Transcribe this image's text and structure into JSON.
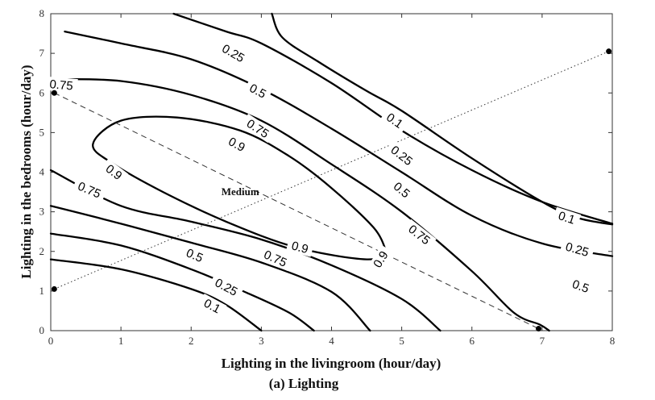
{
  "chart_data": {
    "type": "contour",
    "xlabel": "Lighting in the livingroom (hour/day)",
    "ylabel": "Lighting in the bedrooms (hour/day)",
    "caption": "(a) Lighting",
    "xlim": [
      0,
      8
    ],
    "ylim": [
      0,
      8
    ],
    "xticks": [
      "0",
      "1",
      "2",
      "3",
      "4",
      "5",
      "6",
      "7",
      "8"
    ],
    "yticks": [
      "0",
      "1",
      "2",
      "3",
      "4",
      "5",
      "6",
      "7",
      "8"
    ],
    "grid": false,
    "contours": [
      {
        "level": "0.1",
        "points": [
          [
            0,
            1.8
          ],
          [
            1.0,
            1.55
          ],
          [
            2.0,
            1.05
          ],
          [
            2.5,
            0.65
          ],
          [
            3.0,
            0
          ]
        ]
      },
      {
        "level": "0.25",
        "points": [
          [
            0,
            2.45
          ],
          [
            1.0,
            2.15
          ],
          [
            2.0,
            1.55
          ],
          [
            2.8,
            0.95
          ],
          [
            3.4,
            0.45
          ],
          [
            3.75,
            0
          ]
        ]
      },
      {
        "level": "0.5",
        "points": [
          [
            0,
            3.15
          ],
          [
            1.0,
            2.7
          ],
          [
            2.0,
            2.22
          ],
          [
            3.0,
            1.72
          ],
          [
            4.0,
            0.98
          ],
          [
            4.55,
            0
          ]
        ]
      },
      {
        "level": "0.75",
        "points": [
          [
            0,
            4.05
          ],
          [
            1.0,
            3.15
          ],
          [
            2.0,
            2.75
          ],
          [
            3.0,
            2.3
          ],
          [
            4.0,
            1.65
          ],
          [
            5.0,
            0.8
          ],
          [
            5.55,
            0
          ]
        ]
      },
      {
        "level": "0.9",
        "points": [
          [
            4.78,
            2.0
          ],
          [
            4.6,
            2.6
          ],
          [
            4.0,
            3.6
          ],
          [
            3.4,
            4.4
          ],
          [
            2.7,
            5.05
          ],
          [
            1.8,
            5.38
          ],
          [
            1.0,
            5.3
          ],
          [
            0.6,
            4.7
          ],
          [
            0.9,
            4.2
          ],
          [
            1.6,
            3.5
          ],
          [
            2.5,
            2.75
          ],
          [
            3.5,
            2.1
          ],
          [
            4.5,
            1.8
          ],
          [
            4.78,
            2.0
          ]
        ]
      },
      {
        "level": "0.75",
        "points": [
          [
            0.1,
            6.35
          ],
          [
            1.0,
            6.3
          ],
          [
            2.0,
            5.95
          ],
          [
            3.0,
            5.3
          ],
          [
            4.0,
            4.2
          ],
          [
            5.0,
            3.0
          ],
          [
            6.0,
            1.5
          ],
          [
            6.6,
            0.45
          ],
          [
            6.97,
            0.15
          ],
          [
            7.1,
            0
          ]
        ]
      },
      {
        "level": "0.5",
        "points": [
          [
            0.2,
            7.55
          ],
          [
            1.0,
            7.25
          ],
          [
            2.0,
            6.85
          ],
          [
            3.0,
            6.1
          ],
          [
            4.0,
            5.1
          ],
          [
            5.0,
            4.0
          ],
          [
            6.0,
            2.9
          ],
          [
            7.0,
            2.2
          ],
          [
            8.0,
            1.88
          ]
        ]
      },
      {
        "level": "0.25",
        "points": [
          [
            1.75,
            8.0
          ],
          [
            2.5,
            7.55
          ],
          [
            3.0,
            7.25
          ],
          [
            4.0,
            6.25
          ],
          [
            5.0,
            5.05
          ],
          [
            6.0,
            4.05
          ],
          [
            7.0,
            3.25
          ],
          [
            8.0,
            2.7
          ]
        ]
      },
      {
        "level": "0.1",
        "points": [
          [
            3.15,
            8.0
          ],
          [
            3.3,
            7.4
          ],
          [
            3.8,
            6.8
          ],
          [
            4.5,
            6.05
          ],
          [
            5.0,
            5.55
          ],
          [
            6.0,
            4.35
          ],
          [
            7.0,
            3.25
          ],
          [
            7.5,
            2.85
          ],
          [
            8.0,
            2.68
          ]
        ]
      }
    ],
    "contour_labels": [
      {
        "text": "0.1",
        "x": 7.35,
        "y": 2.85,
        "angle": 18
      },
      {
        "text": "0.25",
        "x": 7.5,
        "y": 2.05,
        "angle": 16
      },
      {
        "text": "0.5",
        "x": 7.55,
        "y": 1.12,
        "angle": 20
      },
      {
        "text": "0.75",
        "x": 5.25,
        "y": 2.42,
        "angle": 38
      },
      {
        "text": "0.9",
        "x": 4.7,
        "y": 1.8,
        "angle": -58
      },
      {
        "text": "0.9",
        "x": 3.55,
        "y": 2.1,
        "angle": 15
      },
      {
        "text": "0.75",
        "x": 3.2,
        "y": 1.82,
        "angle": 24
      },
      {
        "text": "0.5",
        "x": 2.05,
        "y": 1.9,
        "angle": 23
      },
      {
        "text": "0.25",
        "x": 2.5,
        "y": 1.1,
        "angle": 28
      },
      {
        "text": "0.1",
        "x": 2.3,
        "y": 0.62,
        "angle": 28
      },
      {
        "text": "0.9",
        "x": 0.9,
        "y": 4.0,
        "angle": 37
      },
      {
        "text": "0.75",
        "x": 0.55,
        "y": 3.55,
        "angle": 23
      },
      {
        "text": "0.75",
        "x": 0.15,
        "y": 6.2,
        "angle": 5
      },
      {
        "text": "0.9",
        "x": 2.65,
        "y": 4.7,
        "angle": 28
      },
      {
        "text": "0.75",
        "x": 2.95,
        "y": 5.1,
        "angle": 33
      },
      {
        "text": "0.5",
        "x": 2.95,
        "y": 6.05,
        "angle": 28
      },
      {
        "text": "0.25",
        "x": 2.6,
        "y": 7.0,
        "angle": 30
      },
      {
        "text": "0.1",
        "x": 4.9,
        "y": 5.3,
        "angle": 35
      },
      {
        "text": "0.25",
        "x": 5.0,
        "y": 4.42,
        "angle": 38
      },
      {
        "text": "0.5",
        "x": 5.0,
        "y": 3.55,
        "angle": 40
      }
    ],
    "lines": [
      {
        "style": "dashed",
        "points": [
          [
            0.05,
            6.0
          ],
          [
            6.95,
            0.05
          ]
        ]
      },
      {
        "style": "dotted",
        "points": [
          [
            0.05,
            1.05
          ],
          [
            7.95,
            7.05
          ]
        ]
      }
    ],
    "markers": [
      [
        0.05,
        6.0
      ],
      [
        6.95,
        0.05
      ],
      [
        0.05,
        1.05
      ],
      [
        7.95,
        7.05
      ]
    ],
    "annotation": {
      "text": "Medium",
      "x": 2.7,
      "y": 3.5
    }
  }
}
